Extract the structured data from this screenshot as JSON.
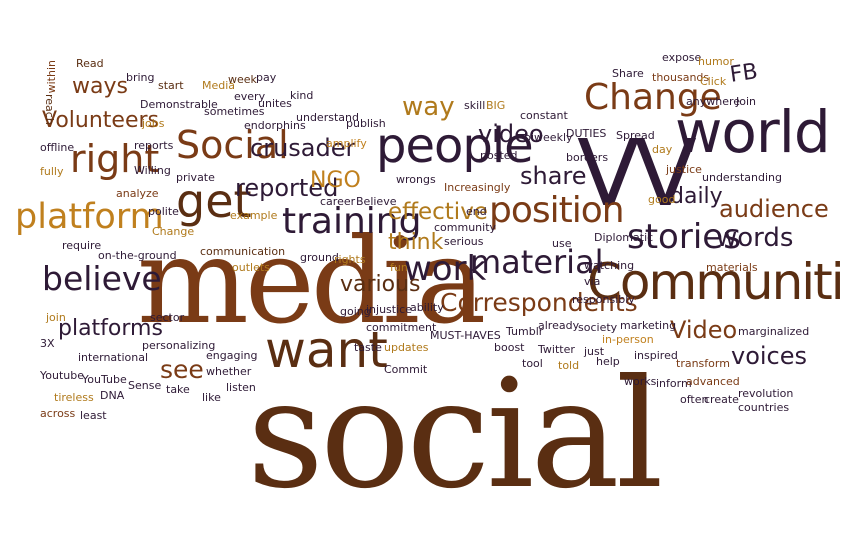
{
  "palette": {
    "plum": "#2e1a36",
    "rust": "#7a3b16",
    "brown": "#5a2e12",
    "gold": "#b07a1c",
    "amber": "#c0801e"
  },
  "words": [
    {
      "text": "social",
      "color": "brown"
    },
    {
      "text": "media",
      "color": "rust"
    },
    {
      "text": "VV",
      "color": "plum"
    },
    {
      "text": "world",
      "color": "plum"
    },
    {
      "text": "Communities",
      "color": "brown"
    },
    {
      "text": "people",
      "color": "plum"
    },
    {
      "text": "want",
      "color": "brown"
    },
    {
      "text": "Change",
      "color": "rust"
    },
    {
      "text": "position",
      "color": "rust"
    },
    {
      "text": "material",
      "color": "plum"
    },
    {
      "text": "training",
      "color": "plum"
    },
    {
      "text": "work",
      "color": "plum"
    },
    {
      "text": "stories",
      "color": "plum"
    },
    {
      "text": "platform",
      "color": "amber"
    },
    {
      "text": "right",
      "color": "rust"
    },
    {
      "text": "get",
      "color": "brown"
    },
    {
      "text": "Social",
      "color": "rust"
    },
    {
      "text": "believe",
      "color": "plum"
    },
    {
      "text": "words",
      "color": "plum"
    },
    {
      "text": "Correspondents",
      "color": "rust"
    },
    {
      "text": "Video",
      "color": "rust"
    },
    {
      "text": "voices",
      "color": "plum"
    },
    {
      "text": "crusader",
      "color": "plum"
    },
    {
      "text": "reported",
      "color": "plum"
    },
    {
      "text": "effective",
      "color": "gold"
    },
    {
      "text": "audience",
      "color": "rust"
    },
    {
      "text": "platforms",
      "color": "plum"
    },
    {
      "text": "share",
      "color": "plum"
    },
    {
      "text": "video",
      "color": "plum"
    },
    {
      "text": "way",
      "color": "gold"
    },
    {
      "text": "Volunteers",
      "color": "rust"
    },
    {
      "text": "ways",
      "color": "rust"
    },
    {
      "text": "daily",
      "color": "plum"
    },
    {
      "text": "think",
      "color": "gold"
    },
    {
      "text": "various",
      "color": "brown"
    },
    {
      "text": "see",
      "color": "rust"
    },
    {
      "text": "NGO",
      "color": "amber"
    },
    {
      "text": "FB",
      "color": "plum"
    },
    {
      "text": "within",
      "color": "rust"
    },
    {
      "text": "Read",
      "color": "brown"
    },
    {
      "text": "reach",
      "color": "brown"
    },
    {
      "text": "bring",
      "color": "plum"
    },
    {
      "text": "start",
      "color": "brown"
    },
    {
      "text": "Media",
      "color": "gold"
    },
    {
      "text": "week",
      "color": "brown"
    },
    {
      "text": "pay",
      "color": "plum"
    },
    {
      "text": "every",
      "color": "plum"
    },
    {
      "text": "unites",
      "color": "plum"
    },
    {
      "text": "kind",
      "color": "plum"
    },
    {
      "text": "Demonstrable",
      "color": "plum"
    },
    {
      "text": "sometimes",
      "color": "plum"
    },
    {
      "text": "endorphins",
      "color": "plum"
    },
    {
      "text": "understand",
      "color": "plum"
    },
    {
      "text": "publish",
      "color": "plum"
    },
    {
      "text": "jobs",
      "color": "gold"
    },
    {
      "text": "amplify",
      "color": "amber"
    },
    {
      "text": "offline",
      "color": "plum"
    },
    {
      "text": "reports",
      "color": "plum"
    },
    {
      "text": "fully",
      "color": "gold"
    },
    {
      "text": "Willing",
      "color": "plum"
    },
    {
      "text": "private",
      "color": "plum"
    },
    {
      "text": "analyze",
      "color": "rust"
    },
    {
      "text": "polite",
      "color": "plum"
    },
    {
      "text": "example",
      "color": "gold"
    },
    {
      "text": "Change",
      "color": "gold"
    },
    {
      "text": "require",
      "color": "plum"
    },
    {
      "text": "on-the-ground",
      "color": "plum"
    },
    {
      "text": "communication",
      "color": "brown"
    },
    {
      "text": "outlets",
      "color": "gold"
    },
    {
      "text": "career",
      "color": "plum"
    },
    {
      "text": "Believe",
      "color": "plum"
    },
    {
      "text": "wrongs",
      "color": "plum"
    },
    {
      "text": "Increasingly",
      "color": "rust"
    },
    {
      "text": "end",
      "color": "plum"
    },
    {
      "text": "community",
      "color": "plum"
    },
    {
      "text": "serious",
      "color": "plum"
    },
    {
      "text": "ground",
      "color": "plum"
    },
    {
      "text": "rights",
      "color": "gold"
    },
    {
      "text": "fun",
      "color": "gold"
    },
    {
      "text": "going",
      "color": "plum"
    },
    {
      "text": "injustice",
      "color": "plum"
    },
    {
      "text": "ability",
      "color": "plum"
    },
    {
      "text": "commitment",
      "color": "plum"
    },
    {
      "text": "MUST-HAVES",
      "color": "plum"
    },
    {
      "text": "Tumblr",
      "color": "plum"
    },
    {
      "text": "already",
      "color": "plum"
    },
    {
      "text": "taste",
      "color": "plum"
    },
    {
      "text": "updates",
      "color": "gold"
    },
    {
      "text": "boost",
      "color": "plum"
    },
    {
      "text": "Twitter",
      "color": "plum"
    },
    {
      "text": "Commit",
      "color": "plum"
    },
    {
      "text": "tool",
      "color": "plum"
    },
    {
      "text": "told",
      "color": "gold"
    },
    {
      "text": "just",
      "color": "plum"
    },
    {
      "text": "in-person",
      "color": "amber"
    },
    {
      "text": "help",
      "color": "plum"
    },
    {
      "text": "society",
      "color": "plum"
    },
    {
      "text": "responsibly",
      "color": "plum"
    },
    {
      "text": "marketing",
      "color": "plum"
    },
    {
      "text": "marginalized",
      "color": "plum"
    },
    {
      "text": "inspired",
      "color": "plum"
    },
    {
      "text": "transform",
      "color": "rust"
    },
    {
      "text": "works",
      "color": "plum"
    },
    {
      "text": "inform",
      "color": "plum"
    },
    {
      "text": "advanced",
      "color": "rust"
    },
    {
      "text": "often",
      "color": "plum"
    },
    {
      "text": "create",
      "color": "plum"
    },
    {
      "text": "revolution",
      "color": "plum"
    },
    {
      "text": "countries",
      "color": "plum"
    },
    {
      "text": "watching",
      "color": "plum"
    },
    {
      "text": "via",
      "color": "plum"
    },
    {
      "text": "use",
      "color": "plum"
    },
    {
      "text": "Diplomatic",
      "color": "plum"
    },
    {
      "text": "materials",
      "color": "rust"
    },
    {
      "text": "justice",
      "color": "rust"
    },
    {
      "text": "understanding",
      "color": "plum"
    },
    {
      "text": "good",
      "color": "gold"
    },
    {
      "text": "day",
      "color": "gold"
    },
    {
      "text": "Spread",
      "color": "plum"
    },
    {
      "text": "DUTIES",
      "color": "plum"
    },
    {
      "text": "borders",
      "color": "plum"
    },
    {
      "text": "biweekly",
      "color": "plum"
    },
    {
      "text": "posted",
      "color": "plum"
    },
    {
      "text": "constant",
      "color": "plum"
    },
    {
      "text": "skill",
      "color": "plum"
    },
    {
      "text": "BIG",
      "color": "gold"
    },
    {
      "text": "Share",
      "color": "plum"
    },
    {
      "text": "thousands",
      "color": "rust"
    },
    {
      "text": "expose",
      "color": "plum"
    },
    {
      "text": "humor",
      "color": "gold"
    },
    {
      "text": "Click",
      "color": "gold"
    },
    {
      "text": "anywhere",
      "color": "plum"
    },
    {
      "text": "Join",
      "color": "plum"
    },
    {
      "text": "join",
      "color": "gold"
    },
    {
      "text": "3X",
      "color": "plum"
    },
    {
      "text": "sector",
      "color": "plum"
    },
    {
      "text": "international",
      "color": "plum"
    },
    {
      "text": "personalizing",
      "color": "plum"
    },
    {
      "text": "engaging",
      "color": "plum"
    },
    {
      "text": "whether",
      "color": "plum"
    },
    {
      "text": "listen",
      "color": "plum"
    },
    {
      "text": "Youtube",
      "color": "plum"
    },
    {
      "text": "YouTube",
      "color": "plum"
    },
    {
      "text": "Sense",
      "color": "plum"
    },
    {
      "text": "take",
      "color": "plum"
    },
    {
      "text": "like",
      "color": "plum"
    },
    {
      "text": "tireless",
      "color": "gold"
    },
    {
      "text": "DNA",
      "color": "plum"
    },
    {
      "text": "across",
      "color": "rust"
    },
    {
      "text": "least",
      "color": "plum"
    }
  ]
}
